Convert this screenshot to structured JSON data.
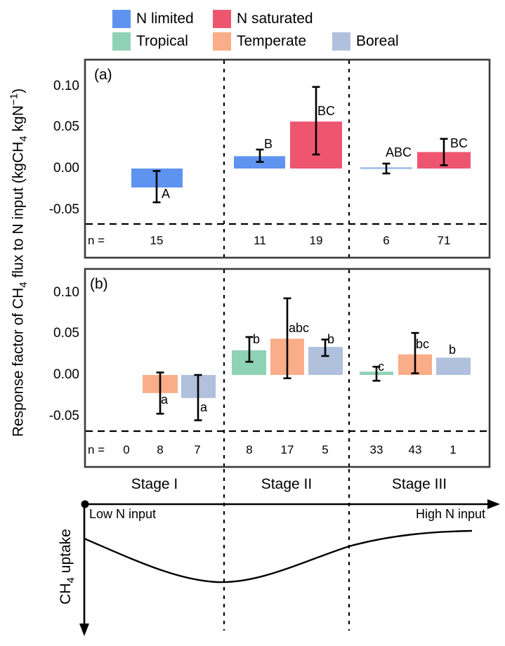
{
  "figure": {
    "panel_a_label": "(a)",
    "panel_b_label": "(b)",
    "n_prefix": "n =",
    "stage_labels": [
      "Stage I",
      "Stage II",
      "Stage III"
    ],
    "ylabel": {
      "p1": "Response factor of CH",
      "s1": "4",
      "p2": " flux to N input (kgCH",
      "s2": "4",
      "p3": " kgN",
      "sup": "−1",
      "p4": ")"
    },
    "bottom": {
      "low_label": "Low N input",
      "high_label": "High N input",
      "curve_ylabel_p1": "CH",
      "curve_ylabel_sub": "4",
      "curve_ylabel_p2": " uptake"
    }
  },
  "legend": {
    "rows": [
      [
        {
          "label": "N limited",
          "color": "#5F93F0"
        },
        {
          "label": "N saturated",
          "color": "#EE5670"
        }
      ],
      [
        {
          "label": "Tropical",
          "color": "#90D2B5"
        },
        {
          "label": "Temperate",
          "color": "#FAAD88"
        },
        {
          "label": "Boreal",
          "color": "#B1C0DD"
        }
      ]
    ]
  },
  "colors": {
    "N limited": "#5F93F0",
    "N saturated": "#EE5670",
    "Tropical": "#90D2B5",
    "Temperate": "#FAAD88",
    "Boreal": "#B1C0DD",
    "thin_bar_line": "#A9C6EE",
    "frame": "#3D3D3D",
    "error_bar": "#000000"
  },
  "chart_data": [
    {
      "id": "a",
      "type": "bar",
      "panel": "(a)",
      "ylim": [
        -0.085,
        0.125
      ],
      "yticks": [
        0.1,
        0.05,
        0.0,
        -0.05
      ],
      "ytick_labels": [
        "0.10",
        "0.05",
        "0.00",
        "-0.05"
      ],
      "bars": [
        {
          "stage": "Stage I",
          "series": "N limited",
          "value": -0.023,
          "err_low": -0.041,
          "err_high": -0.003,
          "sig": "A",
          "n": 15,
          "thin": false
        },
        {
          "stage": "Stage II",
          "series": "N limited",
          "value": 0.015,
          "err_low": 0.008,
          "err_high": 0.023,
          "sig": "B",
          "n": 11,
          "thin": false
        },
        {
          "stage": "Stage II",
          "series": "N saturated",
          "value": 0.057,
          "err_low": 0.017,
          "err_high": 0.099,
          "sig": "BC",
          "n": 19,
          "thin": false
        },
        {
          "stage": "Stage III",
          "series": "N limited",
          "value": 0.0,
          "err_low": -0.006,
          "err_high": 0.006,
          "sig": "ABC",
          "n": 6,
          "thin": true
        },
        {
          "stage": "Stage III",
          "series": "N saturated",
          "value": 0.02,
          "err_low": 0.004,
          "err_high": 0.036,
          "sig": "BC",
          "n": 71,
          "thin": false
        }
      ]
    },
    {
      "id": "b",
      "type": "bar",
      "panel": "(b)",
      "ylim": [
        -0.085,
        0.125
      ],
      "yticks": [
        0.1,
        0.05,
        0.0,
        -0.05
      ],
      "ytick_labels": [
        "0.10",
        "0.05",
        "0.00",
        "-0.05"
      ],
      "bars": [
        {
          "stage": "Stage I",
          "series": "Tropical",
          "value": null,
          "err_low": null,
          "err_high": null,
          "sig": "",
          "n": 0,
          "thin": false
        },
        {
          "stage": "Stage I",
          "series": "Temperate",
          "value": -0.022,
          "err_low": -0.047,
          "err_high": 0.003,
          "sig": "a",
          "n": 8,
          "thin": false
        },
        {
          "stage": "Stage I",
          "series": "Boreal",
          "value": -0.028,
          "err_low": -0.055,
          "err_high": 0.0,
          "sig": "a",
          "n": 7,
          "thin": false
        },
        {
          "stage": "Stage II",
          "series": "Tropical",
          "value": 0.03,
          "err_low": 0.016,
          "err_high": 0.046,
          "sig": "b",
          "n": 8,
          "thin": false
        },
        {
          "stage": "Stage II",
          "series": "Temperate",
          "value": 0.044,
          "err_low": -0.004,
          "err_high": 0.093,
          "sig": "abc",
          "n": 17,
          "thin": false
        },
        {
          "stage": "Stage II",
          "series": "Boreal",
          "value": 0.034,
          "err_low": 0.023,
          "err_high": 0.043,
          "sig": "b",
          "n": 5,
          "thin": false
        },
        {
          "stage": "Stage III",
          "series": "Tropical",
          "value": 0.004,
          "err_low": -0.007,
          "err_high": 0.01,
          "sig": "c",
          "n": 33,
          "thin": false
        },
        {
          "stage": "Stage III",
          "series": "Temperate",
          "value": 0.025,
          "err_low": 0.002,
          "err_high": 0.051,
          "sig": "bc",
          "n": 43,
          "thin": false
        },
        {
          "stage": "Stage III",
          "series": "Boreal",
          "value": 0.021,
          "err_low": null,
          "err_high": null,
          "sig": "b",
          "n": 1,
          "thin": false
        }
      ]
    },
    {
      "id": "concept",
      "type": "line",
      "x_axis": {
        "left_label": "Low N input",
        "right_label": "High N input"
      },
      "y_axis_label": "CH4 uptake",
      "shape": "CH4 uptake declines through Stage I to a minimum near the Stage I/II boundary, then recovers through Stage II and plateaus in Stage III"
    }
  ]
}
